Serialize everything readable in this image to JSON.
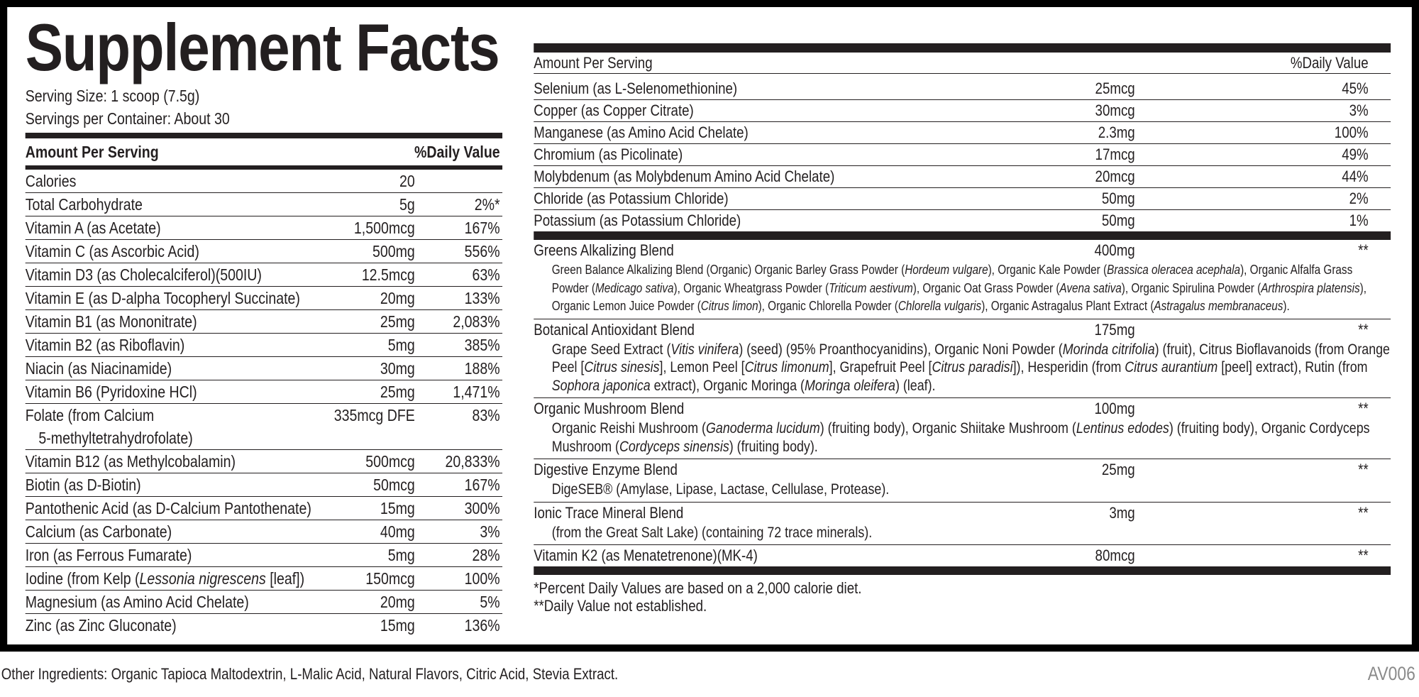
{
  "title": "Supplement Facts",
  "serving_size": "Serving Size: 1 scoop (7.5g)",
  "servings_per_container": "Servings per Container: About 30",
  "left_table": {
    "header": [
      "Amount Per Serving",
      "%Daily Value"
    ],
    "rows": [
      [
        "Calories",
        "20",
        ""
      ],
      [
        "Total Carbohydrate",
        "5g",
        "2%*"
      ],
      [
        "Vitamin A (as Acetate)",
        "1,500mcg",
        "167%"
      ],
      [
        "Vitamin C (as Ascorbic Acid)",
        "500mg",
        "556%"
      ],
      [
        "Vitamin D3 (as Cholecalciferol)(500IU)",
        "12.5mcg",
        "63%"
      ],
      [
        "Vitamin E (as D-alpha Tocopheryl Succinate)",
        "20mg",
        "133%"
      ],
      [
        "Vitamin B1 (as Mononitrate)",
        "25mg",
        "2,083%"
      ],
      [
        "Vitamin B2 (as Riboflavin)",
        "5mg",
        "385%"
      ],
      [
        "Niacin (as Niacinamide)",
        "30mg",
        "188%"
      ],
      [
        "Vitamin B6 (Pyridoxine HCl)",
        "25mg",
        "1,471%"
      ],
      [
        "Folate (from Calcium\n5-methyltetrahydrofolate)",
        "335mcg DFE",
        "83%"
      ],
      [
        "Vitamin B12 (as Methylcobalamin)",
        "500mcg",
        "20,833%"
      ],
      [
        "Biotin (as D-Biotin)",
        "50mcg",
        "167%"
      ],
      [
        "Pantothenic Acid (as D-Calcium Pantothenate)",
        "15mg",
        "300%"
      ],
      [
        "Calcium (as Carbonate)",
        "40mg",
        "3%"
      ],
      [
        "Iron (as Ferrous Fumarate)",
        "5mg",
        "28%"
      ],
      [
        [
          "Iodine (from Kelp (",
          "Lessonia nigrescens",
          " [leaf])"
        ],
        "150mcg",
        "100%"
      ],
      [
        "Magnesium (as Amino Acid Chelate)",
        "20mg",
        "5%"
      ],
      [
        "Zinc (as Zinc Gluconate)",
        "15mg",
        "136%"
      ]
    ]
  },
  "right_table": {
    "header": [
      "Amount Per Serving",
      "%Daily Value"
    ],
    "rows": [
      [
        "Selenium (as L-Selenomethionine)",
        "25mcg",
        "45%"
      ],
      [
        "Copper (as Copper Citrate)",
        "30mcg",
        "3%"
      ],
      [
        "Manganese (as Amino Acid Chelate)",
        "2.3mg",
        "100%"
      ],
      [
        "Chromium (as Picolinate)",
        "17mcg",
        "49%"
      ],
      [
        "Molybdenum (as Molybdenum Amino Acid Chelate)",
        "20mcg",
        "44%"
      ],
      [
        "Chloride (as Potassium Chloride)",
        "50mg",
        "2%"
      ],
      [
        "Potassium (as Potassium Chloride)",
        "50mg",
        "1%"
      ]
    ],
    "blends": [
      {
        "name": "Greens Alkalizing Blend",
        "amount": "400mg",
        "dv": "**",
        "description": [
          "Green Balance Alkalizing Blend (Organic) Organic Barley Grass Powder (",
          "Hordeum vulgare",
          "), Organic Kale Powder (",
          "Brassica oleracea acephala",
          "), Organic Alfalfa Grass Powder (",
          "Medicago sativa",
          "), Organic Wheatgrass Powder (",
          "Triticum aestivum",
          "), Organic Oat Grass Powder (",
          "Avena sativa",
          "), Organic Spirulina Powder (",
          "Arthrospira platensis",
          "), Organic Lemon Juice Powder (",
          "Citrus limon",
          "), Organic Chlorella Powder (",
          "Chlorella vulgaris",
          "), Organic Astragalus Plant Extract (",
          "Astragalus membranaceus",
          ")."
        ]
      },
      {
        "name": "Botanical Antioxidant Blend",
        "amount": "175mg",
        "dv": "**",
        "description": [
          "Grape Seed Extract (",
          "Vitis vinifera",
          ") (seed) (95% Proanthocyanidins), Organic Noni Powder (",
          "Morinda citrifolia",
          ") (fruit), Citrus Bioflavanoids (from Orange Peel [",
          "Citrus sinesis",
          "], Lemon Peel [",
          "Citrus limonum",
          "], Grapefruit Peel [",
          "Citrus paradisi",
          "]), Hesperidin (from ",
          "Citrus aurantium",
          " [peel] extract), Rutin (from ",
          "Sophora japonica",
          " extract), Organic Moringa (",
          "Moringa oleifera",
          ") (leaf)."
        ]
      },
      {
        "name": "Organic Mushroom Blend",
        "amount": "100mg",
        "dv": "**",
        "description": [
          "Organic Reishi Mushroom (",
          "Ganoderma lucidum",
          ") (fruiting body), Organic Shiitake Mushroom (",
          "Lentinus edodes",
          ") (fruiting body), Organic Cordyceps Mushroom (",
          "Cordyceps sinensis",
          ") (fruiting body)."
        ]
      },
      {
        "name": "Digestive Enzyme Blend",
        "amount": "25mg",
        "dv": "**",
        "description": [
          "DigeSEB® (Amylase, Lipase, Lactase, Cellulase, Protease)."
        ]
      },
      {
        "name": "Ionic Trace Mineral Blend",
        "amount": "3mg",
        "dv": "**",
        "description": [
          "(from the Great Salt Lake) (containing 72 trace minerals)."
        ]
      }
    ],
    "final_rows": [
      [
        "Vitamin K2 (as Menatetrenone)(MK-4)",
        "80mcg",
        "**"
      ]
    ]
  },
  "footnotes": [
    "*Percent Daily Values are based on a 2,000 calorie diet.",
    "**Daily Value not established."
  ],
  "other_ingredients": "Other Ingredients: Organic Tapioca Maltodextrin, L-Malic Acid, Natural Flavors, Citric Acid, Stevia Extract.",
  "code": "AV006"
}
